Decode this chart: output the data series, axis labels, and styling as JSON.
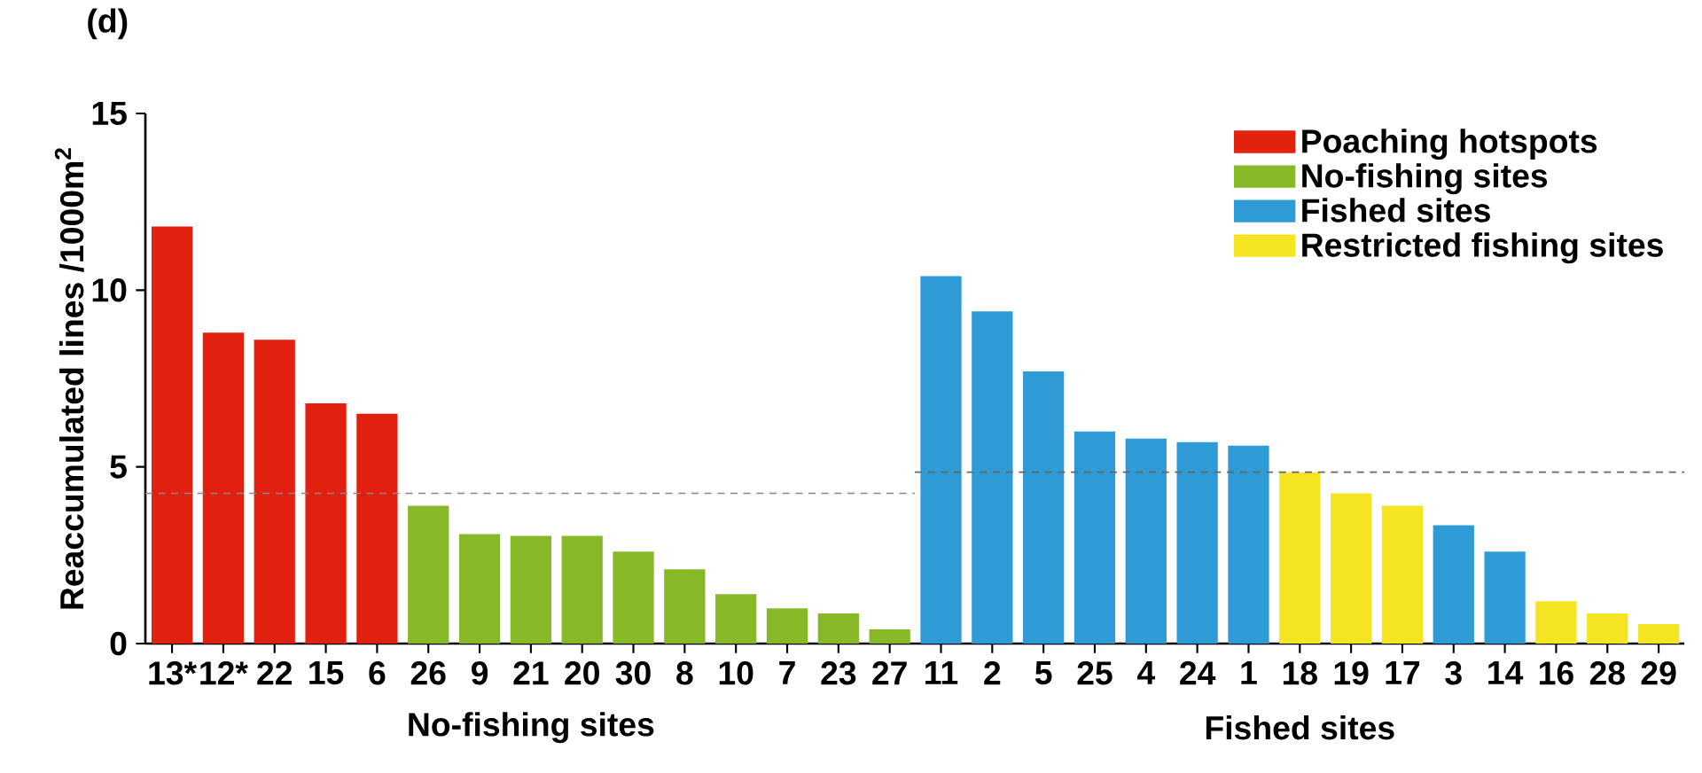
{
  "chart_data": {
    "type": "bar",
    "title": "(d)",
    "ylabel": "Reaccumulated lines /1000m$^{2}$",
    "categories": [
      "13*",
      "12*",
      "22",
      "15",
      "6",
      "26",
      "9",
      "21",
      "20",
      "30",
      "8",
      "10",
      "7",
      "23",
      "27",
      "11",
      "2",
      "5",
      "25",
      "4",
      "24",
      "1",
      "18",
      "19",
      "17",
      "3",
      "14",
      "16",
      "28",
      "29"
    ],
    "series": [
      {
        "name": "Poaching hotspots",
        "color": "#e2200f",
        "values": [
          11.8,
          8.8,
          8.6,
          6.8,
          6.5,
          null,
          null,
          null,
          null,
          null,
          null,
          null,
          null,
          null,
          null,
          null,
          null,
          null,
          null,
          null,
          null,
          null,
          null,
          null,
          null,
          null,
          null,
          null,
          null,
          null
        ]
      },
      {
        "name": "No-fishing sites",
        "color": "#86b827",
        "values": [
          null,
          null,
          null,
          null,
          null,
          3.9,
          3.1,
          3.05,
          3.05,
          2.6,
          2.1,
          1.4,
          1.0,
          0.85,
          0.4,
          null,
          null,
          null,
          null,
          null,
          null,
          null,
          null,
          null,
          null,
          null,
          null,
          null,
          null,
          null
        ]
      },
      {
        "name": "Fished sites",
        "color": "#2f9bd6",
        "values": [
          null,
          null,
          null,
          null,
          null,
          null,
          null,
          null,
          null,
          null,
          null,
          null,
          null,
          null,
          null,
          10.4,
          9.4,
          7.7,
          6.0,
          5.8,
          5.7,
          5.6,
          null,
          null,
          null,
          3.35,
          2.6,
          null,
          null,
          null
        ]
      },
      {
        "name": "Restricted fishing sites",
        "color": "#f5e421",
        "values": [
          null,
          null,
          null,
          null,
          null,
          null,
          null,
          null,
          null,
          null,
          null,
          null,
          null,
          null,
          null,
          null,
          null,
          null,
          null,
          null,
          null,
          null,
          4.85,
          4.25,
          3.9,
          null,
          null,
          1.2,
          0.85,
          0.55
        ]
      }
    ],
    "ylim": [
      0,
      15
    ],
    "yticks": [
      0,
      5,
      10,
      15
    ],
    "legend": "top right",
    "grid": false,
    "ref_lines": [
      {
        "axis": "y",
        "value": 4.25,
        "color": "#888888",
        "line_style": "dashed"
      },
      {
        "axis": "y",
        "value": 4.85,
        "color": "#666666",
        "line_style": "dashed"
      }
    ],
    "annotations": [
      "No-fishing sites",
      "Fished sites"
    ]
  }
}
